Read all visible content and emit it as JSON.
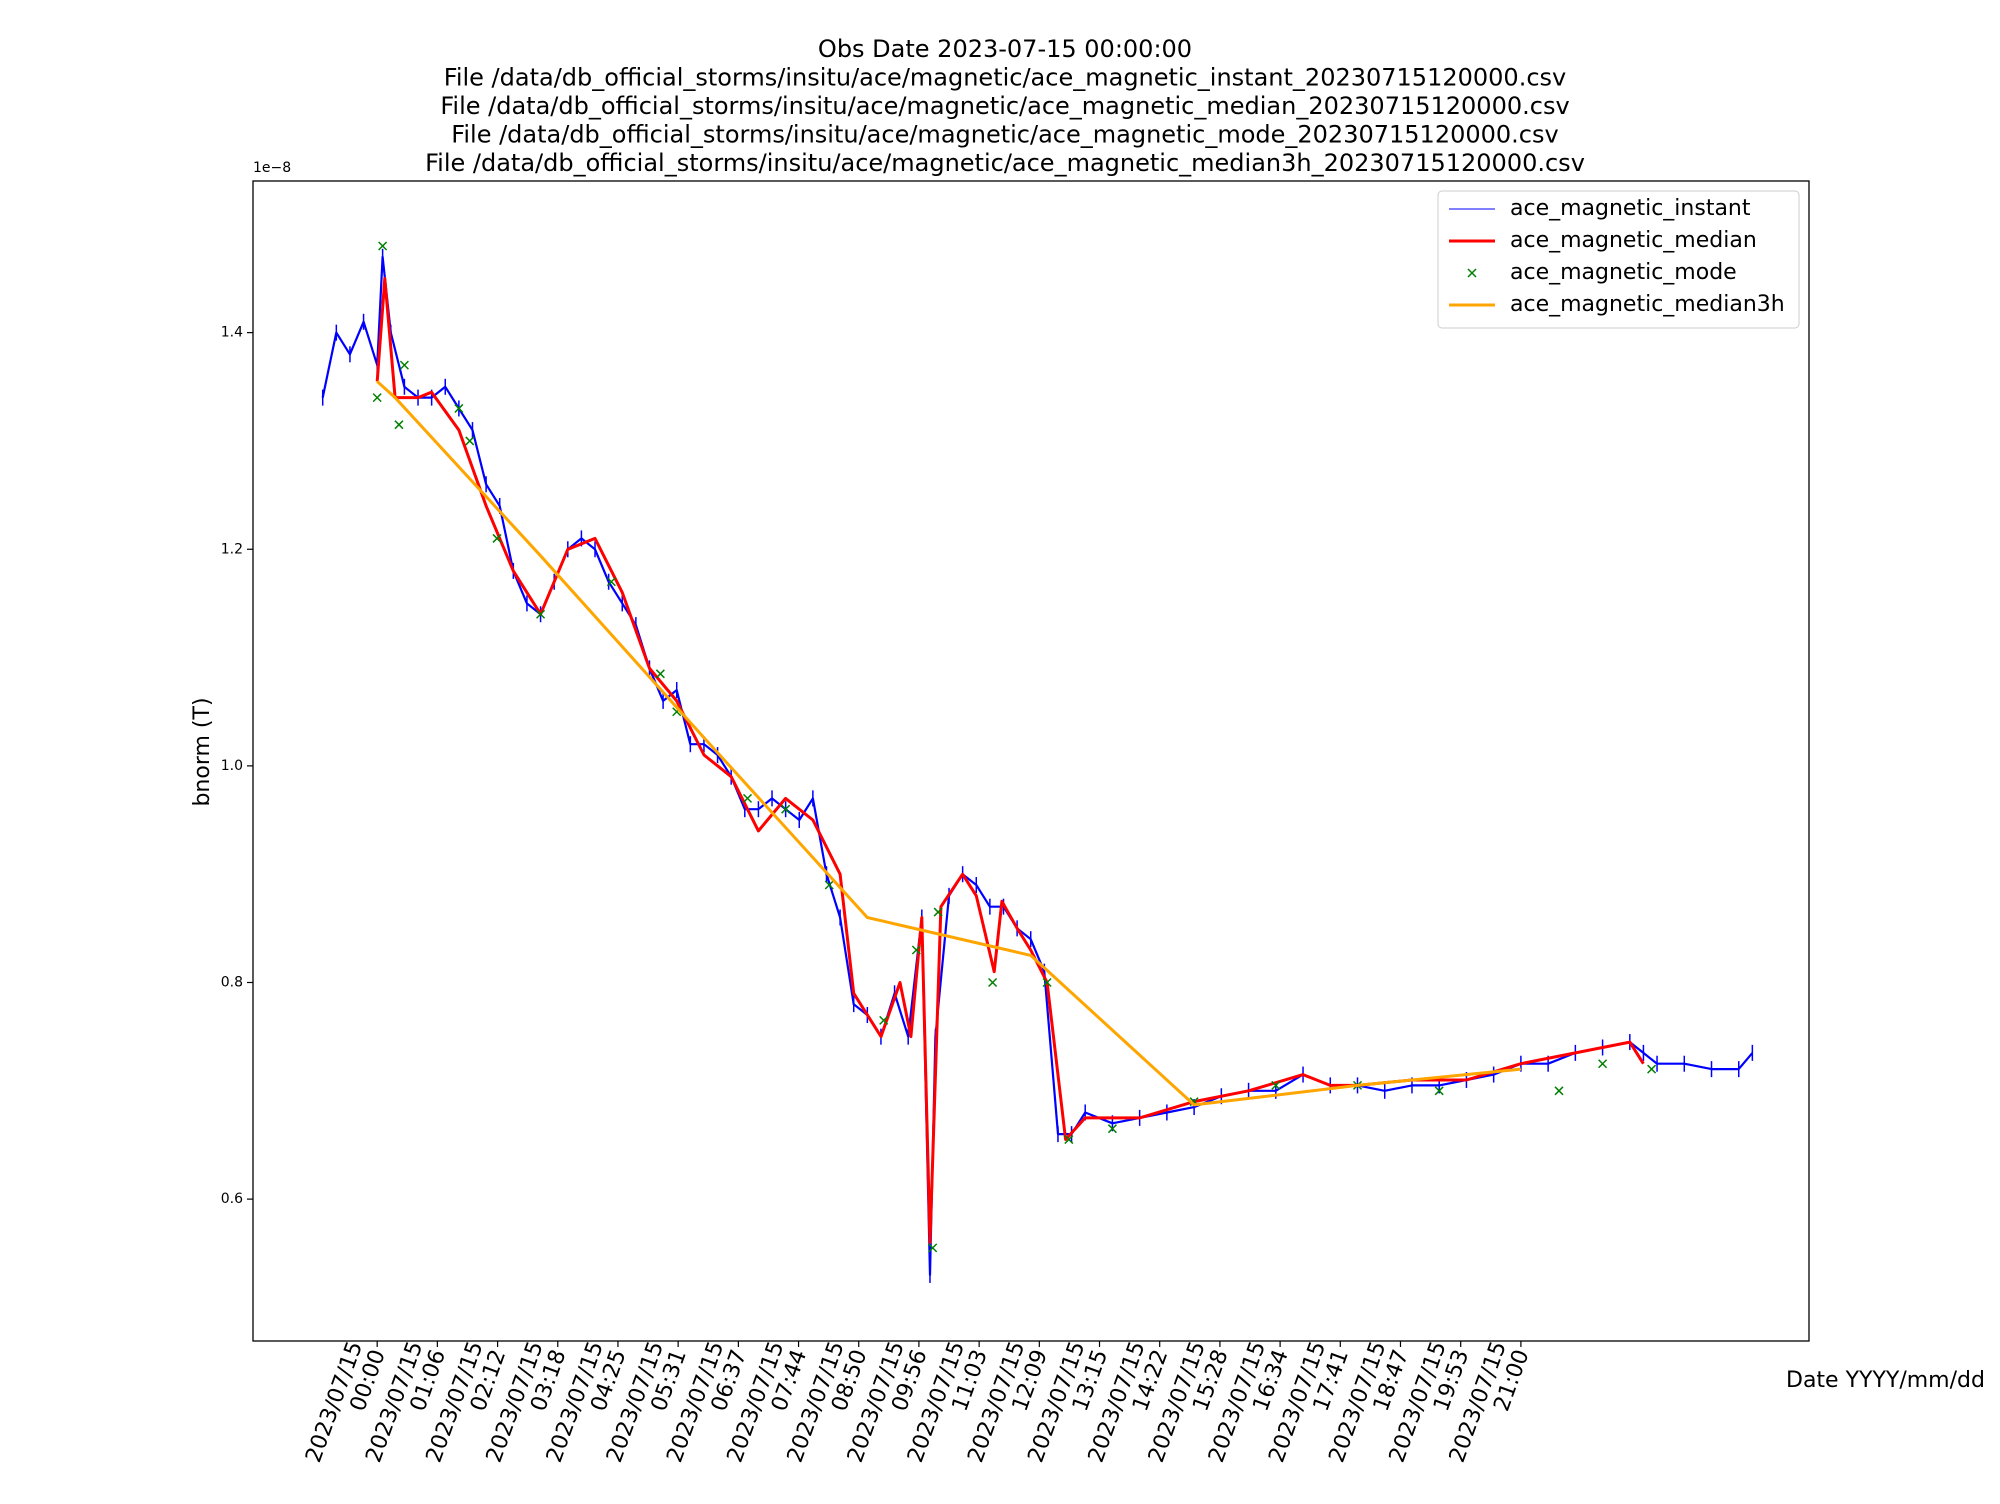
{
  "chart_data": {
    "type": "line",
    "title": [
      "Obs Date 2023-07-15 00:00:00",
      "File /data/db_official_storms/insitu/ace/magnetic/ace_magnetic_instant_20230715120000.csv",
      "File /data/db_official_storms/insitu/ace/magnetic/ace_magnetic_median_20230715120000.csv",
      "File /data/db_official_storms/insitu/ace/magnetic/ace_magnetic_mode_20230715120000.csv",
      "File /data/db_official_storms/insitu/ace/magnetic/ace_magnetic_median3h_20230715120000.csv"
    ],
    "x_label": "Date YYYY/mm/dd",
    "y_label": "bnorm (T)",
    "y_offset_label": "1e−8",
    "legend": "upper right",
    "xlim": [
      -2.28,
      26.29
    ],
    "ylim": [
      0.469,
      1.54
    ],
    "yticks": [
      0.6,
      0.8,
      {
        "value": 1,
        "label": "1.0"
      },
      1.2,
      1.4
    ],
    "xticks": [
      {
        "value": 0,
        "label": "2023/07/15\n00:00"
      },
      {
        "value": 1.105,
        "label": "2023/07/15\n01:06"
      },
      {
        "value": 2.211,
        "label": "2023/07/15\n02:12"
      },
      {
        "value": 3.316,
        "label": "2023/07/15\n03:18"
      },
      {
        "value": 4.421,
        "label": "2023/07/15\n04:25"
      },
      {
        "value": 5.526,
        "label": "2023/07/15\n05:31"
      },
      {
        "value": 6.632,
        "label": "2023/07/15\n06:37"
      },
      {
        "value": 7.737,
        "label": "2023/07/15\n07:44"
      },
      {
        "value": 8.842,
        "label": "2023/07/15\n08:50"
      },
      {
        "value": 9.947,
        "label": "2023/07/15\n09:56"
      },
      {
        "value": 11.053,
        "label": "2023/07/15\n11:03"
      },
      {
        "value": 12.158,
        "label": "2023/07/15\n12:09"
      },
      {
        "value": 13.263,
        "label": "2023/07/15\n13:15"
      },
      {
        "value": 14.368,
        "label": "2023/07/15\n14:22"
      },
      {
        "value": 15.474,
        "label": "2023/07/15\n15:28"
      },
      {
        "value": 16.579,
        "label": "2023/07/15\n16:34"
      },
      {
        "value": 17.684,
        "label": "2023/07/15\n17:41"
      },
      {
        "value": 18.789,
        "label": "2023/07/15\n18:47"
      },
      {
        "value": 19.895,
        "label": "2023/07/15\n19:53"
      },
      {
        "value": 21,
        "label": "2023/07/15\n21:00"
      }
    ],
    "series": [
      {
        "name": "ace_magnetic_instant",
        "color": "#0000ff",
        "style": "line-marker",
        "x": [
          -1.0,
          -0.75,
          -0.5,
          -0.25,
          0.0,
          0.1,
          0.25,
          0.5,
          0.75,
          1.0,
          1.25,
          1.5,
          1.75,
          2.0,
          2.25,
          2.5,
          2.75,
          3.0,
          3.25,
          3.5,
          3.75,
          4.0,
          4.25,
          4.5,
          4.75,
          5.0,
          5.25,
          5.5,
          5.75,
          6.0,
          6.25,
          6.5,
          6.75,
          7.0,
          7.25,
          7.5,
          7.75,
          8.0,
          8.25,
          8.5,
          8.75,
          9.0,
          9.25,
          9.5,
          9.75,
          10.0,
          10.15,
          10.25,
          10.5,
          10.75,
          11.0,
          11.25,
          11.5,
          11.75,
          12.0,
          12.25,
          12.5,
          12.75,
          13.0,
          13.5,
          14.0,
          14.5,
          15.0,
          15.5,
          16.0,
          16.5,
          17.0,
          17.5,
          18.0,
          18.5,
          19.0,
          19.5,
          20.0,
          20.5,
          21.0,
          21.5,
          22.0,
          22.5,
          23.0,
          23.25,
          23.5,
          24.0,
          24.5,
          25.0,
          25.25
        ],
        "values": [
          1.34,
          1.4,
          1.38,
          1.41,
          1.37,
          1.47,
          1.4,
          1.35,
          1.34,
          1.34,
          1.35,
          1.33,
          1.31,
          1.26,
          1.24,
          1.18,
          1.15,
          1.14,
          1.17,
          1.2,
          1.21,
          1.2,
          1.17,
          1.15,
          1.13,
          1.09,
          1.06,
          1.07,
          1.02,
          1.02,
          1.01,
          0.99,
          0.96,
          0.96,
          0.97,
          0.96,
          0.95,
          0.97,
          0.9,
          0.86,
          0.78,
          0.77,
          0.75,
          0.79,
          0.75,
          0.86,
          0.53,
          0.75,
          0.88,
          0.9,
          0.89,
          0.87,
          0.87,
          0.85,
          0.84,
          0.81,
          0.66,
          0.66,
          0.68,
          0.67,
          0.675,
          0.68,
          0.685,
          0.695,
          0.7,
          0.7,
          0.715,
          0.705,
          0.705,
          0.7,
          0.705,
          0.705,
          0.71,
          0.715,
          0.725,
          0.725,
          0.735,
          0.74,
          0.745,
          0.735,
          0.725,
          0.725,
          0.72,
          0.72,
          0.735
        ]
      },
      {
        "name": "ace_magnetic_median",
        "color": "#ff0000",
        "style": "line",
        "x": [
          0.0,
          0.14,
          0.33,
          0.75,
          1.0,
          1.5,
          2.0,
          2.5,
          3.0,
          3.5,
          4.0,
          4.5,
          5.0,
          5.5,
          6.0,
          6.5,
          7.0,
          7.5,
          8.0,
          8.5,
          8.75,
          9.25,
          9.6,
          9.8,
          10.0,
          10.15,
          10.35,
          10.75,
          11.0,
          11.33,
          11.47,
          11.75,
          12.0,
          12.3,
          12.64,
          13.0,
          14.0,
          15.0,
          16.0,
          17.0,
          17.5,
          18.0,
          19.0,
          20.0,
          21.0,
          22.0,
          23.0,
          23.25
        ],
        "values": [
          1.355,
          1.45,
          1.34,
          1.34,
          1.345,
          1.31,
          1.24,
          1.18,
          1.14,
          1.2,
          1.21,
          1.16,
          1.09,
          1.06,
          1.01,
          0.99,
          0.94,
          0.97,
          0.95,
          0.9,
          0.79,
          0.75,
          0.8,
          0.75,
          0.86,
          0.56,
          0.87,
          0.9,
          0.88,
          0.81,
          0.875,
          0.85,
          0.83,
          0.8,
          0.655,
          0.675,
          0.675,
          0.69,
          0.7,
          0.715,
          0.705,
          0.705,
          0.71,
          0.71,
          0.725,
          0.735,
          0.745,
          0.725
        ]
      },
      {
        "name": "ace_magnetic_mode",
        "color": "#008000",
        "style": "x",
        "x": [
          0.0,
          0.1,
          0.4,
          0.5,
          1.5,
          1.7,
          2.2,
          3.0,
          4.3,
          5.2,
          5.5,
          6.8,
          7.5,
          8.3,
          9.3,
          9.9,
          10.2,
          10.3,
          11.3,
          12.3,
          12.7,
          13.5,
          15.0,
          16.5,
          18.0,
          19.5,
          21.7,
          22.5,
          23.4
        ],
        "values": [
          1.34,
          1.48,
          1.315,
          1.37,
          1.33,
          1.3,
          1.21,
          1.14,
          1.17,
          1.085,
          1.05,
          0.97,
          0.96,
          0.89,
          0.765,
          0.83,
          0.555,
          0.865,
          0.8,
          0.8,
          0.655,
          0.665,
          0.69,
          0.705,
          0.705,
          0.7,
          0.7,
          0.725,
          0.72
        ]
      },
      {
        "name": "ace_magnetic_median3h",
        "color": "#ffa500",
        "style": "line",
        "x": [
          0,
          0.33,
          3,
          6,
          9,
          12,
          15,
          18,
          21
        ],
        "values": [
          1.355,
          1.34,
          1.194,
          1.026,
          0.86,
          0.825,
          0.687,
          0.705,
          0.72
        ]
      }
    ]
  }
}
